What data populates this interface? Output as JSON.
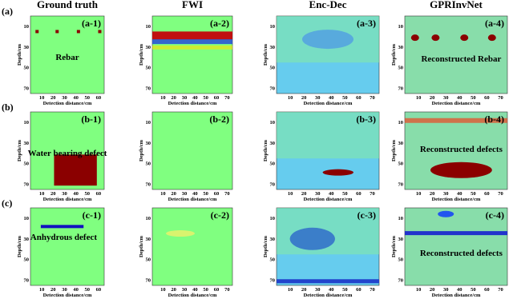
{
  "columns": [
    {
      "title": "Ground truth",
      "xticks": [
        10,
        20,
        30,
        40,
        50,
        60
      ]
    },
    {
      "title": "FWI",
      "xticks": [
        10,
        20,
        30,
        40,
        50,
        60,
        70
      ]
    },
    {
      "title": "Enc-Dec",
      "xticks": [
        10,
        20,
        30,
        40,
        50,
        60,
        70
      ]
    },
    {
      "title": "GPRInvNet",
      "xticks": [
        10,
        20,
        30,
        40,
        50,
        60,
        70
      ]
    }
  ],
  "rows": [
    {
      "label": "(a)",
      "panels": [
        "(a-1)",
        "(a-2)",
        "(a-3)",
        "(a-4)"
      ],
      "ground_truth_note": "Rebar",
      "reconstruction_note": "Reconstructed Rebar"
    },
    {
      "label": "(b)",
      "panels": [
        "(b-1)",
        "(b-2)",
        "(b-3)",
        "(b-4)"
      ],
      "ground_truth_note": "Water bearing defect",
      "reconstruction_note": "Reconstructed defects"
    },
    {
      "label": "(c)",
      "panels": [
        "(c-1)",
        "(c-2)",
        "(c-3)",
        "(c-4)"
      ],
      "ground_truth_note": "Anhydrous defect",
      "reconstruction_note": "Reconstructed defects"
    }
  ],
  "x_axis_label": "Detection distance/cm",
  "y_axis_label": "Depth/cm",
  "yticks": [
    10,
    30,
    50,
    70
  ]
}
